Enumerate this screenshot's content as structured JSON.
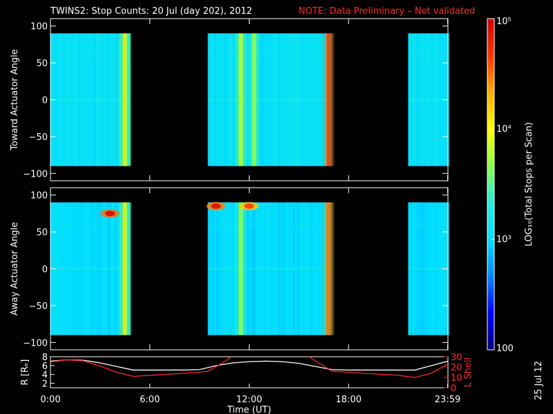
{
  "header": {
    "title": "TWINS2: Stop Counts: 20 Jul (day 202), 2012",
    "note": "NOTE: Data Preliminary – Not validated"
  },
  "footer": {
    "date_stamp": "25 Jul 12"
  },
  "chart_data": [
    {
      "type": "heatmap",
      "ylabel": "Toward Actuator Angle",
      "ylim": [
        -110,
        110
      ],
      "yticks": [
        "100",
        "50",
        "0",
        "−50",
        "−100"
      ],
      "ytick_values": [
        100,
        50,
        0,
        -50,
        -100
      ],
      "xlim": [
        0,
        24
      ],
      "data_range_deg": [
        -90,
        90
      ],
      "data_intervals_hours": [
        [
          0.0,
          4.8
        ],
        [
          9.5,
          16.9
        ],
        [
          21.6,
          24.0
        ]
      ],
      "background_level": 1200,
      "bright_stripes": [
        {
          "t": 4.5,
          "level": 12000
        },
        {
          "t": 11.5,
          "level": 8000
        },
        {
          "t": 12.3,
          "level": 6000
        },
        {
          "t": 16.8,
          "level": 60000
        }
      ]
    },
    {
      "type": "heatmap",
      "ylabel": "Away Actuator Angle",
      "ylim": [
        -110,
        110
      ],
      "yticks": [
        "100",
        "50",
        "0",
        "−50",
        "−100"
      ],
      "ytick_values": [
        100,
        50,
        0,
        -50,
        -100
      ],
      "xlim": [
        0,
        24
      ],
      "data_range_deg": [
        -90,
        90
      ],
      "data_intervals_hours": [
        [
          0.0,
          4.8
        ],
        [
          9.5,
          16.9
        ],
        [
          21.6,
          24.0
        ]
      ],
      "background_level": 1000,
      "bright_stripes": [
        {
          "t": 4.5,
          "level": 12000
        },
        {
          "t": 11.5,
          "level": 6000
        },
        {
          "t": 16.8,
          "level": 40000
        }
      ],
      "hot_spots": [
        {
          "t": 3.6,
          "angle": 75,
          "level": 80000
        },
        {
          "t": 10.0,
          "angle": 85,
          "level": 70000
        },
        {
          "t": 12.0,
          "angle": 85,
          "level": 40000
        }
      ]
    },
    {
      "type": "line",
      "ylabel": "R [Rₑ]",
      "ylabel_right": "L Shell",
      "xlabel": "Time (UT)",
      "xtick_labels": [
        "0:00",
        "6:00",
        "12:00",
        "18:00",
        "23:59"
      ],
      "xtick_values": [
        0,
        6,
        12,
        18,
        23.98
      ],
      "ylim": [
        1,
        8
      ],
      "yticks": [
        2,
        4,
        6,
        8
      ],
      "ylim_right": [
        0,
        30
      ],
      "yticks_right": [
        0,
        10,
        20,
        30
      ],
      "series": [
        {
          "axis": "left",
          "color": "#ffffff",
          "x": [
            0,
            1,
            2,
            3,
            4,
            5,
            6,
            7,
            8,
            9,
            10,
            11,
            12,
            13,
            14,
            15,
            16,
            17,
            18,
            19,
            20,
            21,
            22,
            23,
            24
          ],
          "y": [
            7.0,
            7.3,
            7.2,
            6.6,
            5.8,
            5.0,
            5.0,
            5.0,
            5.0,
            5.1,
            6.0,
            6.6,
            6.9,
            7.0,
            6.9,
            6.5,
            5.8,
            5.1,
            5.0,
            5.0,
            5.0,
            5.0,
            5.0,
            6.0,
            7.0
          ]
        },
        {
          "axis": "right",
          "color": "#ff2a2a",
          "x": [
            0,
            1,
            2,
            3,
            4,
            5,
            6,
            7,
            8,
            9,
            9.5,
            10.5,
            11,
            15.5,
            16.2,
            17,
            18,
            19,
            20,
            21,
            22,
            23,
            24
          ],
          "y": [
            25,
            27,
            26,
            21,
            15,
            11,
            12,
            13,
            14,
            15,
            16,
            25,
            31,
            31,
            24,
            16,
            15,
            14,
            13,
            12,
            10,
            14,
            23
          ]
        }
      ]
    }
  ],
  "colorbar": {
    "label": "LOG₁₀(Total Stops per Scan)",
    "tick_labels": [
      "10⁵",
      "10⁴",
      "10³",
      "100"
    ],
    "tick_values": [
      100000,
      10000,
      1000,
      100
    ],
    "range": [
      100,
      100000
    ],
    "colors": [
      "#000080",
      "#0000ff",
      "#0088ff",
      "#00ddff",
      "#22eedd",
      "#88ff44",
      "#ffff00",
      "#ffaa00",
      "#ff3300",
      "#d00000"
    ]
  }
}
